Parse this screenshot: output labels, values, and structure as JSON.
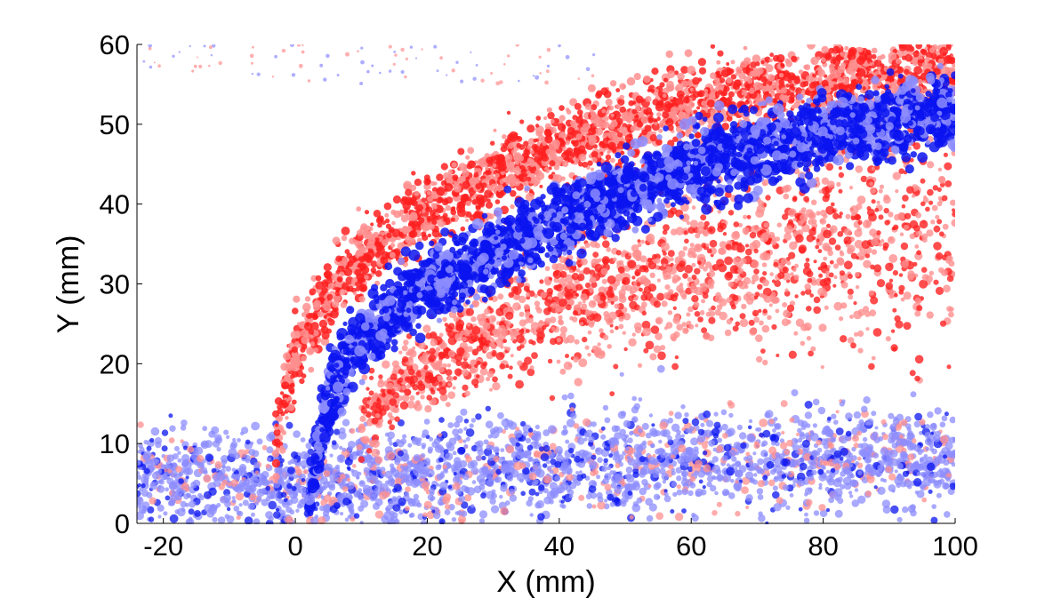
{
  "chart_data": {
    "type": "scatter",
    "title": "",
    "xlabel": "X (mm)",
    "ylabel": "Y (mm)",
    "xlim": [
      -24,
      100
    ],
    "ylim": [
      0,
      60
    ],
    "xticks": [
      "-20",
      "0",
      "20",
      "40",
      "60",
      "80",
      "100"
    ],
    "yticks": [
      "0",
      "10",
      "20",
      "30",
      "40",
      "50",
      "60"
    ],
    "grid": false,
    "legend": "none",
    "colors": {
      "red_series": "#ff2020",
      "light_red_series": "#ff8f8f",
      "blue_series": "#0a14f0",
      "light_blue_series": "#8c8cff"
    },
    "series": [
      {
        "color": "red",
        "x": [
          -3,
          -2,
          -1,
          0,
          2,
          4,
          6,
          8,
          10,
          13,
          16,
          20,
          24,
          28,
          32,
          36,
          40,
          45,
          50,
          55,
          60,
          65,
          70,
          75,
          80,
          85,
          90,
          95,
          100
        ],
        "y": [
          10,
          14,
          18,
          21,
          24,
          27,
          29.5,
          31.5,
          33,
          35,
          37,
          39,
          41,
          42.5,
          44,
          45.5,
          47,
          48.5,
          50,
          51.5,
          52.5,
          53.5,
          54.5,
          55,
          55.5,
          56,
          56.5,
          57,
          57
        ],
        "lower_band": {
          "x": [
            10,
            14,
            18,
            22,
            26,
            30,
            35,
            40,
            45,
            50,
            55,
            60,
            65,
            70,
            75,
            80,
            85,
            90,
            95,
            100
          ],
          "y": [
            13,
            16,
            18.5,
            20.5,
            22.5,
            24,
            25.5,
            27,
            28.5,
            29.5,
            30.5,
            31.5,
            32.5,
            33.5,
            34,
            35,
            35.5,
            36,
            37,
            38
          ]
        }
      },
      {
        "color": "blue",
        "x": [
          2,
          3,
          4,
          5,
          6,
          8,
          10,
          13,
          16,
          20,
          24,
          28,
          32,
          36,
          40,
          45,
          50,
          55,
          60,
          65,
          70,
          75,
          80,
          85,
          90,
          95,
          100
        ],
        "y": [
          3,
          7,
          11,
          15,
          18,
          21,
          23,
          25.5,
          27.5,
          29.5,
          31.5,
          33,
          34.5,
          36,
          37.5,
          39.5,
          41.5,
          43,
          44.5,
          46,
          47,
          48,
          49,
          50,
          50.5,
          51,
          51.5
        ]
      },
      {
        "color": "light-blue",
        "x": [
          -24,
          -20,
          -10,
          0,
          10,
          20,
          30,
          40,
          50,
          60,
          70,
          80,
          90,
          100
        ],
        "y": [
          6,
          6,
          5.5,
          5,
          5.5,
          6,
          7,
          7.5,
          8,
          8,
          8,
          8,
          8,
          8
        ]
      }
    ]
  }
}
